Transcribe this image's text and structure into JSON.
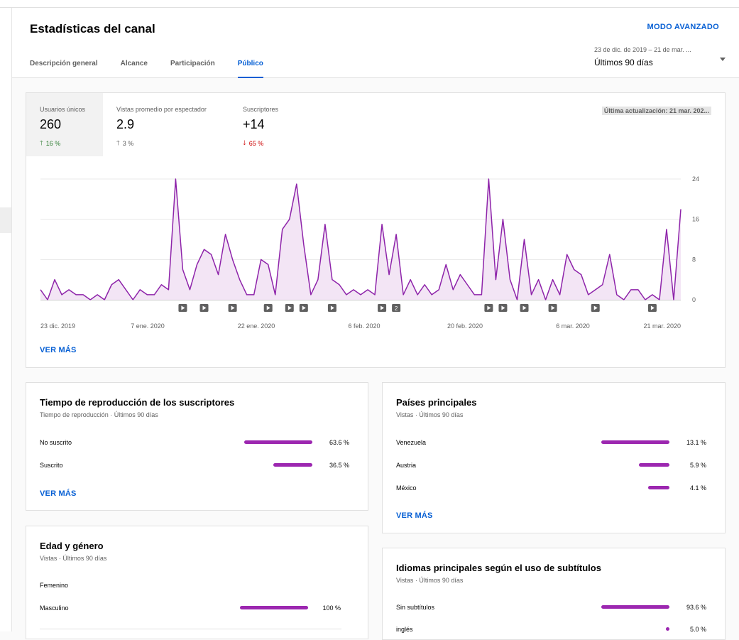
{
  "header": {
    "title": "Estadísticas del canal",
    "advanced_label": "MODO AVANZADO",
    "tabs": [
      {
        "label": "Descripción general",
        "active": false
      },
      {
        "label": "Alcance",
        "active": false
      },
      {
        "label": "Participación",
        "active": false
      },
      {
        "label": "Público",
        "active": true
      }
    ],
    "range_sub": "23 de dic. de 2019 – 21 de mar. ...",
    "range_main": "Últimos 90 días"
  },
  "metrics": {
    "unique_viewers": {
      "label": "Usuarios únicos",
      "value": "260",
      "change": "16 %",
      "direction": "up"
    },
    "avg_views": {
      "label": "Vistas promedio por espectador",
      "value": "2.9",
      "change": "3 %",
      "direction": "up"
    },
    "subscribers": {
      "label": "Suscriptores",
      "value": "+14",
      "change": "65 %",
      "direction": "down"
    },
    "last_update": "Última actualización: 21 mar. 202..."
  },
  "chart_data": {
    "type": "area",
    "series": [
      {
        "values": [
          2,
          0,
          4,
          1,
          2,
          1,
          1,
          0,
          1,
          0,
          3,
          4,
          2,
          0,
          2,
          1,
          1,
          3,
          2,
          24,
          6,
          2,
          7,
          10,
          9,
          5,
          13,
          8,
          4,
          1,
          1,
          8,
          7,
          1,
          14,
          16,
          23,
          11,
          1,
          4,
          15,
          4,
          3,
          1,
          2,
          1,
          2,
          1,
          15,
          5,
          13,
          1,
          4,
          1,
          3,
          1,
          2,
          7,
          2,
          5,
          3,
          1,
          1,
          24,
          4,
          16,
          4,
          0,
          12,
          1,
          4,
          0,
          4,
          1,
          9,
          6,
          5,
          1,
          2,
          3,
          9,
          1,
          0,
          2,
          2,
          0,
          1,
          0,
          14,
          0,
          18
        ]
      }
    ],
    "x_labels": [
      "23 dic. 2019",
      "7 ene. 2020",
      "22 ene. 2020",
      "6 feb. 2020",
      "20 feb. 2020",
      "6 mar. 2020",
      "21 mar. 2020"
    ],
    "y_ticks": [
      0,
      8,
      16,
      24
    ],
    "ylim": [
      0,
      24
    ],
    "colors": {
      "line": "#8e24aa",
      "fill": "#f3e5f5"
    },
    "markers": [
      {
        "day": 20,
        "label": ""
      },
      {
        "day": 23,
        "label": ""
      },
      {
        "day": 27,
        "label": ""
      },
      {
        "day": 32,
        "label": ""
      },
      {
        "day": 35,
        "label": ""
      },
      {
        "day": 37,
        "label": ""
      },
      {
        "day": 41,
        "label": ""
      },
      {
        "day": 48,
        "label": ""
      },
      {
        "day": 50,
        "label": "2"
      },
      {
        "day": 63,
        "label": ""
      },
      {
        "day": 65,
        "label": ""
      },
      {
        "day": 68,
        "label": ""
      },
      {
        "day": 72,
        "label": ""
      },
      {
        "day": 78,
        "label": ""
      },
      {
        "day": 86,
        "label": ""
      }
    ]
  },
  "main_see_more": "VER MÁS",
  "sub_watch": {
    "title": "Tiempo de reproducción de los suscriptores",
    "subtitle": "Tiempo de reproducción · Últimos 90 días",
    "rows": [
      {
        "name": "No suscrito",
        "pct": "63.6 %",
        "value": 63.6
      },
      {
        "name": "Suscrito",
        "pct": "36.5 %",
        "value": 36.5
      }
    ],
    "see_more": "VER MÁS"
  },
  "countries": {
    "title": "Países principales",
    "subtitle": "Vistas · Últimos 90 días",
    "rows": [
      {
        "name": "Venezuela",
        "pct": "13.1 %",
        "value": 13.1
      },
      {
        "name": "Austria",
        "pct": "5.9 %",
        "value": 5.9
      },
      {
        "name": "México",
        "pct": "4.1 %",
        "value": 4.1
      }
    ],
    "see_more": "VER MÁS"
  },
  "age_gender": {
    "title": "Edad y género",
    "subtitle": "Vistas · Últimos 90 días",
    "rows": [
      {
        "name": "Femenino",
        "pct": "",
        "value": 0
      },
      {
        "name": "Masculino",
        "pct": "100 %",
        "value": 100
      }
    ]
  },
  "subtitles": {
    "title": "Idiomas principales según el uso de subtítulos",
    "subtitle": "Vistas · Últimos 90 días",
    "rows": [
      {
        "name": "Sin subtítulos",
        "pct": "93.6 %",
        "value": 93.6
      },
      {
        "name": "inglés",
        "pct": "5.0 %",
        "value": 5.0
      }
    ]
  }
}
